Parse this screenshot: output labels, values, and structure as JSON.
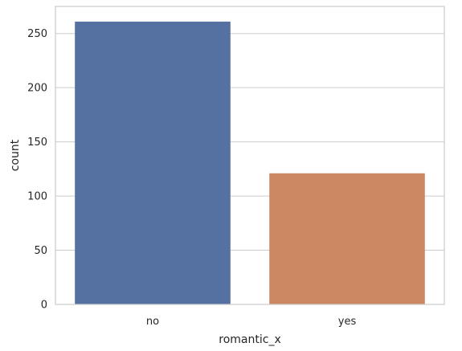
{
  "chart_data": {
    "type": "bar",
    "title": "",
    "xlabel": "romantic_x",
    "ylabel": "count",
    "categories": [
      "no",
      "yes"
    ],
    "values": [
      261,
      121
    ],
    "ylim": [
      0,
      275
    ],
    "yticks": [
      0,
      50,
      100,
      150,
      200,
      250
    ],
    "grid": true,
    "grid_axis": "y",
    "colors": [
      "#5471a2",
      "#cc8862"
    ],
    "background": "#ffffff",
    "grid_color": "#cccccc",
    "frame_color": "#cccccc"
  }
}
